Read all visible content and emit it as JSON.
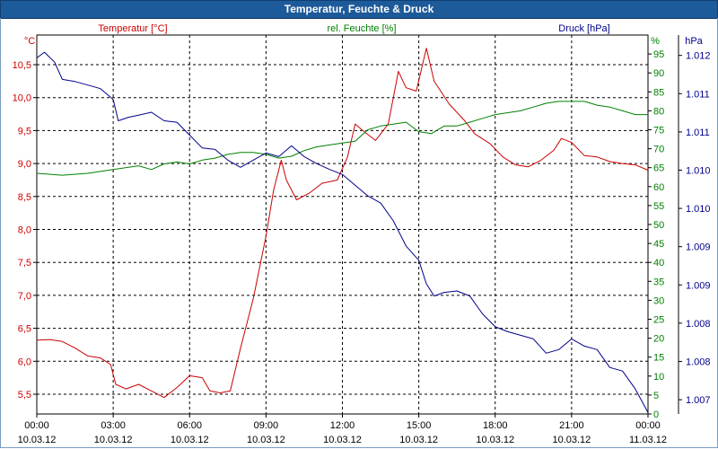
{
  "title": "Temperatur, Feuchte & Druck",
  "chart_data": {
    "type": "line",
    "x_ticks": [
      {
        "time": "00:00",
        "date": "10.03.12"
      },
      {
        "time": "03:00",
        "date": "10.03.12"
      },
      {
        "time": "06:00",
        "date": "10.03.12"
      },
      {
        "time": "09:00",
        "date": "10.03.12"
      },
      {
        "time": "12:00",
        "date": "10.03.12"
      },
      {
        "time": "15:00",
        "date": "10.03.12"
      },
      {
        "time": "18:00",
        "date": "10.03.12"
      },
      {
        "time": "21:00",
        "date": "10.03.12"
      },
      {
        "time": "00:00",
        "date": "11.03.12"
      }
    ],
    "xlim_hours": [
      0,
      24
    ],
    "grid": true,
    "axes": {
      "temperature": {
        "label": "Temperatur [°C]",
        "unit": "°C",
        "color": "#cc0000",
        "ylim": [
          5.2,
          10.95
        ],
        "ticks": [
          "5,5",
          "6,0",
          "6,5",
          "7,0",
          "7,5",
          "8,0",
          "8,5",
          "9,0",
          "9,5",
          "10,0",
          "10,5"
        ]
      },
      "humidity": {
        "label": "rel. Feuchte [%]",
        "unit": "%",
        "color": "#008000",
        "ylim": [
          0,
          100
        ],
        "ticks": [
          "0",
          "5",
          "10",
          "15",
          "20",
          "25",
          "30",
          "35",
          "40",
          "45",
          "50",
          "55",
          "60",
          "65",
          "70",
          "75",
          "80",
          "85",
          "90",
          "95"
        ]
      },
      "pressure": {
        "label": "Druck [hPa]",
        "unit": "hPa",
        "color": "#00008b",
        "ylim": [
          1006.9,
          1012.2
        ],
        "ticks": [
          "1.007",
          "1.008",
          "1.008",
          "1.009",
          "1.009",
          "1.010",
          "1.010",
          "1.011",
          "1.011",
          "1.012"
        ]
      }
    },
    "series": [
      {
        "name": "Temperatur [°C]",
        "axis": "temperature",
        "color": "#cc0000",
        "points": [
          [
            0,
            6.32
          ],
          [
            0.5,
            6.33
          ],
          [
            1,
            6.3
          ],
          [
            1.5,
            6.2
          ],
          [
            2,
            6.08
          ],
          [
            2.5,
            6.05
          ],
          [
            2.9,
            5.95
          ],
          [
            3.1,
            5.65
          ],
          [
            3.5,
            5.58
          ],
          [
            4,
            5.65
          ],
          [
            4.5,
            5.55
          ],
          [
            5,
            5.45
          ],
          [
            5.5,
            5.6
          ],
          [
            6,
            5.78
          ],
          [
            6.5,
            5.75
          ],
          [
            6.8,
            5.55
          ],
          [
            7.2,
            5.52
          ],
          [
            7.6,
            5.55
          ],
          [
            8,
            6.2
          ],
          [
            8.5,
            6.95
          ],
          [
            9,
            7.9
          ],
          [
            9.3,
            8.6
          ],
          [
            9.6,
            9.05
          ],
          [
            9.8,
            8.75
          ],
          [
            10.2,
            8.45
          ],
          [
            10.7,
            8.55
          ],
          [
            11.2,
            8.7
          ],
          [
            11.8,
            8.75
          ],
          [
            12.2,
            9.1
          ],
          [
            12.5,
            9.6
          ],
          [
            12.8,
            9.5
          ],
          [
            13.3,
            9.35
          ],
          [
            13.8,
            9.6
          ],
          [
            14.2,
            10.4
          ],
          [
            14.5,
            10.15
          ],
          [
            14.9,
            10.1
          ],
          [
            15.3,
            10.75
          ],
          [
            15.6,
            10.25
          ],
          [
            16.2,
            9.9
          ],
          [
            16.8,
            9.65
          ],
          [
            17.2,
            9.45
          ],
          [
            17.8,
            9.3
          ],
          [
            18.3,
            9.1
          ],
          [
            18.8,
            8.98
          ],
          [
            19.3,
            8.95
          ],
          [
            19.8,
            9.05
          ],
          [
            20.3,
            9.2
          ],
          [
            20.6,
            9.38
          ],
          [
            21,
            9.32
          ],
          [
            21.5,
            9.12
          ],
          [
            22,
            9.1
          ],
          [
            22.5,
            9.03
          ],
          [
            23,
            9.0
          ],
          [
            23.5,
            8.98
          ],
          [
            24,
            8.9
          ]
        ]
      },
      {
        "name": "rel. Feuchte [%]",
        "axis": "humidity",
        "color": "#008000",
        "points": [
          [
            0,
            63.5
          ],
          [
            1,
            63
          ],
          [
            2,
            63.5
          ],
          [
            3,
            64.5
          ],
          [
            4,
            65.5
          ],
          [
            4.5,
            64.5
          ],
          [
            5,
            66
          ],
          [
            5.5,
            66.5
          ],
          [
            6,
            66
          ],
          [
            6.5,
            67
          ],
          [
            7,
            67.5
          ],
          [
            7.5,
            68.5
          ],
          [
            8,
            69
          ],
          [
            8.5,
            69
          ],
          [
            9,
            68.5
          ],
          [
            9.5,
            67.5
          ],
          [
            10,
            68
          ],
          [
            10.5,
            69.5
          ],
          [
            11,
            70.5
          ],
          [
            11.5,
            71
          ],
          [
            12,
            71.5
          ],
          [
            12.5,
            72
          ],
          [
            13,
            75
          ],
          [
            13.5,
            76
          ],
          [
            14,
            76.5
          ],
          [
            14.5,
            77
          ],
          [
            15,
            74.5
          ],
          [
            15.5,
            74
          ],
          [
            16,
            76
          ],
          [
            16.5,
            76
          ],
          [
            17,
            77
          ],
          [
            17.5,
            78
          ],
          [
            18,
            79
          ],
          [
            18.5,
            79.5
          ],
          [
            19,
            80
          ],
          [
            19.5,
            81
          ],
          [
            20,
            82
          ],
          [
            20.5,
            82.5
          ],
          [
            21,
            82.5
          ],
          [
            21.5,
            82.5
          ],
          [
            22,
            81.5
          ],
          [
            22.5,
            81
          ],
          [
            23,
            80
          ],
          [
            23.5,
            79
          ],
          [
            24,
            79
          ]
        ]
      },
      {
        "name": "Druck [hPa]",
        "axis": "pressure",
        "color": "#00008b",
        "points": [
          [
            0,
            1011.88
          ],
          [
            0.3,
            1011.96
          ],
          [
            0.7,
            1011.82
          ],
          [
            1,
            1011.58
          ],
          [
            1.5,
            1011.55
          ],
          [
            2,
            1011.5
          ],
          [
            2.5,
            1011.45
          ],
          [
            3,
            1011.3
          ],
          [
            3.2,
            1011.0
          ],
          [
            3.6,
            1011.05
          ],
          [
            4,
            1011.08
          ],
          [
            4.5,
            1011.12
          ],
          [
            5,
            1011.0
          ],
          [
            5.5,
            1010.98
          ],
          [
            6,
            1010.8
          ],
          [
            6.5,
            1010.62
          ],
          [
            7,
            1010.6
          ],
          [
            7.5,
            1010.45
          ],
          [
            8,
            1010.35
          ],
          [
            8.5,
            1010.45
          ],
          [
            9,
            1010.55
          ],
          [
            9.5,
            1010.5
          ],
          [
            10,
            1010.65
          ],
          [
            10.5,
            1010.5
          ],
          [
            11,
            1010.4
          ],
          [
            11.5,
            1010.32
          ],
          [
            12,
            1010.25
          ],
          [
            12.5,
            1010.1
          ],
          [
            13,
            1009.95
          ],
          [
            13.5,
            1009.85
          ],
          [
            14,
            1009.6
          ],
          [
            14.5,
            1009.25
          ],
          [
            15,
            1009.05
          ],
          [
            15.3,
            1008.72
          ],
          [
            15.6,
            1008.55
          ],
          [
            16,
            1008.6
          ],
          [
            16.5,
            1008.62
          ],
          [
            17,
            1008.55
          ],
          [
            17.5,
            1008.3
          ],
          [
            18,
            1008.12
          ],
          [
            18.5,
            1008.05
          ],
          [
            19,
            1008.0
          ],
          [
            19.5,
            1007.95
          ],
          [
            20,
            1007.75
          ],
          [
            20.5,
            1007.8
          ],
          [
            21,
            1007.95
          ],
          [
            21.5,
            1007.85
          ],
          [
            22,
            1007.8
          ],
          [
            22.5,
            1007.55
          ],
          [
            23,
            1007.5
          ],
          [
            23.5,
            1007.25
          ],
          [
            24,
            1006.92
          ]
        ]
      }
    ]
  }
}
